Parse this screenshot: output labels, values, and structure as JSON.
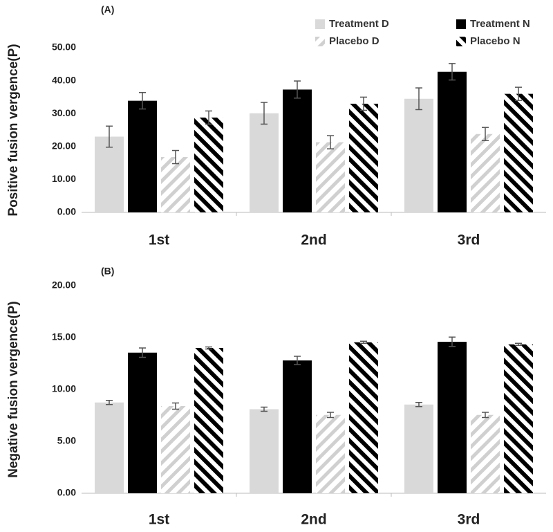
{
  "chart_data": [
    {
      "type": "bar",
      "title": "(A)",
      "ylabel": "Positive fusion vergence(P)",
      "categories": [
        "1st",
        "2nd",
        "3rd"
      ],
      "ylim": [
        0,
        50
      ],
      "yticks": [
        {
          "value": 0,
          "label": "0.00"
        },
        {
          "value": 10,
          "label": "10.00"
        },
        {
          "value": 20,
          "label": "20.00"
        },
        {
          "value": 30,
          "label": "30.00"
        },
        {
          "value": 40,
          "label": "40.00"
        },
        {
          "value": 50,
          "label": "50.00"
        }
      ],
      "legend": true,
      "series": [
        {
          "name": "Treatment D",
          "color": "#d9d9d9",
          "pattern": "solid",
          "values": [
            23,
            30.1,
            34.5
          ],
          "errors": [
            3.2,
            3.3,
            3.3
          ]
        },
        {
          "name": "Treatment N",
          "color": "#000000",
          "pattern": "solid",
          "values": [
            33.9,
            37.3,
            42.7
          ],
          "errors": [
            2.5,
            2.6,
            2.5
          ]
        },
        {
          "name": "Placebo D",
          "color": "#d0d0d0",
          "pattern": "hatch",
          "values": [
            16.8,
            21.3,
            23.8
          ],
          "errors": [
            2,
            2,
            2
          ]
        },
        {
          "name": "Placebo N",
          "color": "#000000",
          "pattern": "hatch",
          "values": [
            28.8,
            33,
            36
          ],
          "errors": [
            2,
            2,
            2
          ]
        }
      ]
    },
    {
      "type": "bar",
      "title": "(B)",
      "ylabel": "Negative fusion vergence(P)",
      "categories": [
        "1st",
        "2nd",
        "3rd"
      ],
      "ylim": [
        0,
        20
      ],
      "yticks": [
        {
          "value": 0,
          "label": "0.00"
        },
        {
          "value": 5,
          "label": "5.00"
        },
        {
          "value": 10,
          "label": "10.00"
        },
        {
          "value": 15,
          "label": "15.00"
        },
        {
          "value": 20,
          "label": "20.00"
        }
      ],
      "legend": false,
      "series": [
        {
          "color": "#d9d9d9",
          "pattern": "solid",
          "values": [
            8.75,
            8.1,
            8.55
          ],
          "errors": [
            0.2,
            0.2,
            0.2
          ]
        },
        {
          "color": "#000000",
          "pattern": "solid",
          "values": [
            13.55,
            12.8,
            14.6
          ],
          "errors": [
            0.45,
            0.4,
            0.45
          ]
        },
        {
          "color": "#d0d0d0",
          "pattern": "hatch",
          "values": [
            8.4,
            7.55,
            7.55
          ],
          "errors": [
            0.3,
            0.25,
            0.25
          ]
        },
        {
          "color": "#000000",
          "pattern": "hatch",
          "values": [
            14,
            14.55,
            14.35
          ],
          "errors": [
            0.1,
            0.1,
            0.1
          ]
        }
      ]
    }
  ]
}
